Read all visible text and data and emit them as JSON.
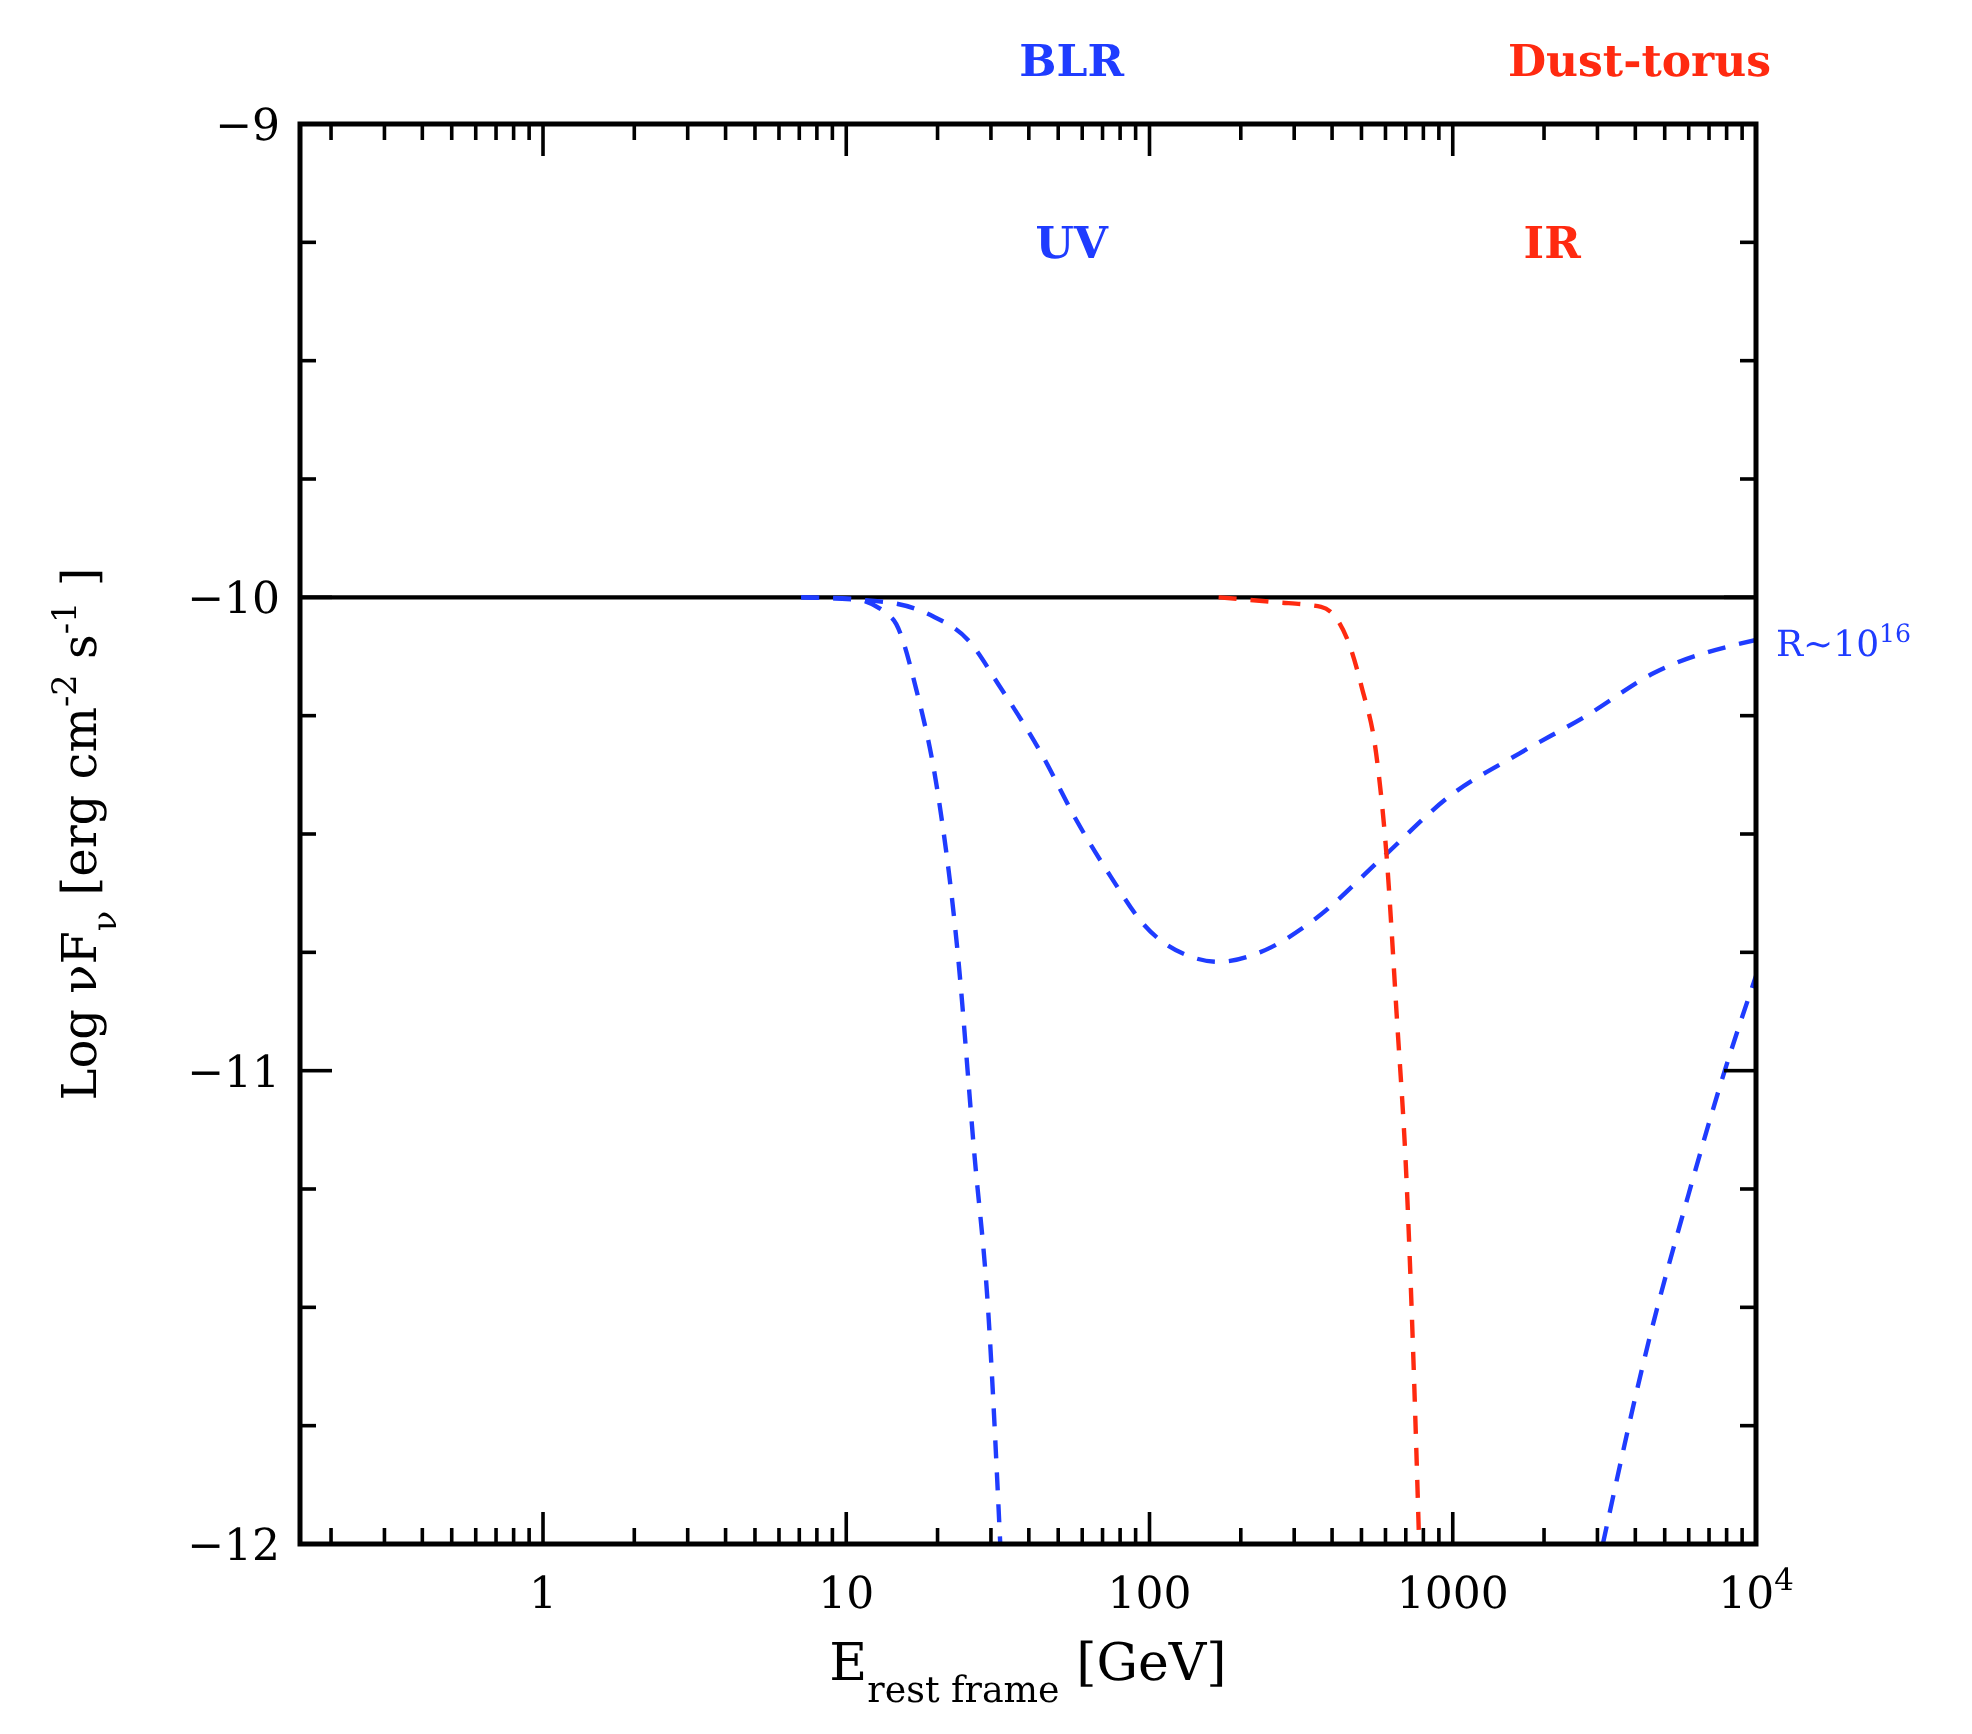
{
  "chart_data": {
    "type": "line",
    "xlabel": "E$_{rest frame}$  [GeV]",
    "ylabel": "Log νF$_{ν}$  [erg cm$^{-2}$ s$^{-1}$]",
    "log": "x",
    "xlim": [
      0.158,
      10000
    ],
    "ylim": [
      -12,
      -9
    ],
    "xticks": [
      {
        "value": 0.2,
        "label": null
      },
      {
        "value": 0.3,
        "label": null
      },
      {
        "value": 0.4,
        "label": null
      },
      {
        "value": 0.5,
        "label": null
      },
      {
        "value": 0.6,
        "label": null
      },
      {
        "value": 0.7,
        "label": null
      },
      {
        "value": 0.8,
        "label": null
      },
      {
        "value": 0.9,
        "label": null
      },
      1,
      {
        "value": 2,
        "label": null
      },
      {
        "value": 3,
        "label": null
      },
      {
        "value": 4,
        "label": null
      },
      {
        "value": 5,
        "label": null
      },
      {
        "value": 6,
        "label": null
      },
      {
        "value": 7,
        "label": null
      },
      {
        "value": 8,
        "label": null
      },
      {
        "value": 9,
        "label": null
      },
      10,
      {
        "value": 20,
        "label": null
      },
      {
        "value": 30,
        "label": null
      },
      {
        "value": 40,
        "label": null
      },
      {
        "value": 50,
        "label": null
      },
      {
        "value": 60,
        "label": null
      },
      {
        "value": 70,
        "label": null
      },
      {
        "value": 80,
        "label": null
      },
      {
        "value": 90,
        "label": null
      },
      100,
      {
        "value": 200,
        "label": null
      },
      {
        "value": 300,
        "label": null
      },
      {
        "value": 400,
        "label": null
      },
      {
        "value": 500,
        "label": null
      },
      {
        "value": 600,
        "label": null
      },
      {
        "value": 700,
        "label": null
      },
      {
        "value": 800,
        "label": null
      },
      {
        "value": 900,
        "label": null
      },
      1000,
      {
        "value": 2000,
        "label": null
      },
      {
        "value": 3000,
        "label": null
      },
      {
        "value": 4000,
        "label": null
      },
      {
        "value": 5000,
        "label": null
      },
      {
        "value": 6000,
        "label": null
      },
      {
        "value": 7000,
        "label": null
      },
      {
        "value": 8000,
        "label": null
      },
      {
        "value": 9000,
        "label": null
      },
      {
        "value": 10000,
        "label": "10$^{4}$"
      }
    ],
    "yticks": [
      -12,
      {
        "value": -11.75,
        "label": null
      },
      {
        "value": -11.5,
        "label": null
      },
      {
        "value": -11.25,
        "label": null
      },
      -11,
      {
        "value": -10.75,
        "label": null
      },
      {
        "value": -10.5,
        "label": null
      },
      {
        "value": -10.25,
        "label": null
      },
      -10,
      {
        "value": -9.75,
        "label": null
      },
      {
        "value": -9.5,
        "label": null
      },
      {
        "value": -9.25,
        "label": null
      },
      -9
    ],
    "grid": false,
    "series": [
      {
        "color": "#000000",
        "line_style": "solid",
        "x": [
          0.158,
          10000
        ],
        "values": [
          -10,
          -10
        ]
      },
      {
        "color": "#1f3cff",
        "line_style": "dashed",
        "x": [
          7.1,
          10.4,
          14.2,
          17.1,
          20,
          23.3,
          26.4,
          29.4,
          32.2
        ],
        "values": [
          -10,
          -10.003,
          -10.045,
          -10.2,
          -10.41,
          -10.75,
          -11.17,
          -11.51,
          -12
        ]
      },
      {
        "name": "R~10$^{16}$",
        "color": "#1f3cff",
        "line_style": "dashed",
        "x": [
          7.1,
          13.5,
          19.3,
          25.2,
          32.2,
          44,
          57.3,
          74.5,
          95.4,
          138,
          169,
          231,
          351,
          586,
          977,
          1656,
          2761,
          4603,
          10000
        ],
        "values": [
          -10,
          -10.01,
          -10.04,
          -10.09,
          -10.19,
          -10.33,
          -10.47,
          -10.59,
          -10.69,
          -10.76,
          -10.77,
          -10.75,
          -10.68,
          -10.55,
          -10.42,
          -10.33,
          -10.25,
          -10.16,
          -10.09
        ]
      },
      {
        "color": "#1f3cff",
        "line_style": "dashed",
        "x": [
          3126,
          4395,
          6000,
          7800,
          10000
        ],
        "values": [
          -12,
          -11.58,
          -11.26,
          -11.01,
          -10.8
        ]
      },
      {
        "color": "#ff2a10",
        "line_style": "dashed",
        "x": [
          169,
          258,
          368,
          450,
          501,
          559,
          604,
          653,
          705,
          739,
          775
        ],
        "values": [
          -10,
          -10.01,
          -10.02,
          -10.09,
          -10.19,
          -10.33,
          -10.54,
          -10.88,
          -11.24,
          -11.58,
          -12
        ]
      }
    ],
    "annotations": [
      "BLR",
      "Dust-torus",
      "UV",
      "IR"
    ]
  }
}
